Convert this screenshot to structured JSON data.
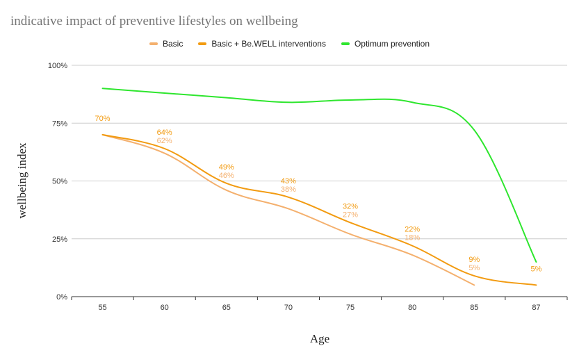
{
  "chart_data": {
    "type": "line",
    "title": "indicative impact of preventive lifestyles on wellbeing",
    "xlabel": "Age",
    "ylabel": "wellbeing index",
    "categories": [
      "55",
      "60",
      "65",
      "70",
      "75",
      "80",
      "85",
      "87"
    ],
    "y_ticks": [
      "0%",
      "25%",
      "50%",
      "75%",
      "100%"
    ],
    "ylim": [
      0,
      100
    ],
    "legend_position": "top",
    "grid": true,
    "series": [
      {
        "name": "Basic",
        "color": "#f4b06e",
        "values": [
          70,
          62,
          46,
          38,
          27,
          18,
          5,
          null
        ],
        "labels": [
          "",
          "62%",
          "46%",
          "38%",
          "27%",
          "18%",
          "5%",
          ""
        ]
      },
      {
        "name": "Basic + Be.WELL interventions",
        "color": "#f29b11",
        "values": [
          70,
          64,
          49,
          43,
          32,
          22,
          9,
          5
        ],
        "labels": [
          "70%",
          "64%",
          "49%",
          "43%",
          "32%",
          "22%",
          "9%",
          "5%"
        ]
      },
      {
        "name": "Optimum prevention",
        "color": "#2ee62e",
        "values": [
          90,
          88,
          86,
          84,
          85,
          84,
          72,
          15
        ],
        "labels": [
          "",
          "",
          "",
          "",
          "",
          "",
          "",
          ""
        ]
      }
    ]
  }
}
